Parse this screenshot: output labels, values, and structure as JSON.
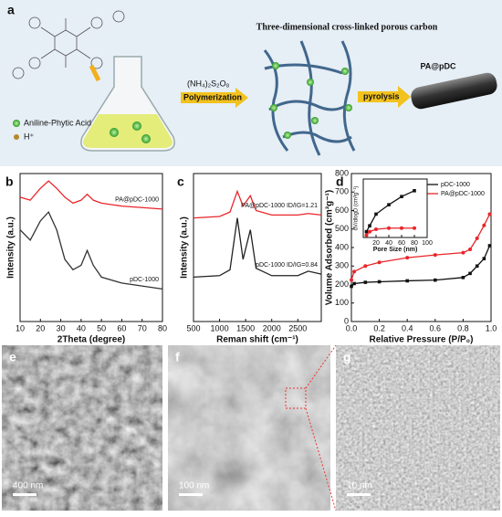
{
  "figure": {
    "panel_a": {
      "label": "a",
      "legend_pa": "Aniline-Phytic Acid",
      "legend_h": "H⁺",
      "reagent": "(NH₄)₂S₂O₈",
      "step1": "Polymerization",
      "network": "Three-dimensional cross-linked porous carbon",
      "step2": "pyrolysis",
      "product": "PA@pDC"
    },
    "micrographs": [
      {
        "label": "e",
        "scale": "400 nm"
      },
      {
        "label": "f",
        "scale": "100 nm"
      },
      {
        "label": "g",
        "scale": "10 nm"
      }
    ]
  },
  "chart_data": [
    {
      "type": "line",
      "panel": "b",
      "ylabel": "Intensity (a.u.)",
      "xlabel": "2Theta (degree)",
      "xlim": [
        10,
        80
      ],
      "xticks": [
        10,
        20,
        30,
        40,
        50,
        60,
        70,
        80
      ],
      "ylim": [
        0,
        100
      ],
      "x": [
        10,
        15,
        20,
        24,
        28,
        32,
        36,
        40,
        43,
        46,
        50,
        60,
        70,
        80
      ],
      "series": [
        {
          "name": "PA@pDC-1000",
          "color": "#e8262a",
          "values": [
            84,
            82,
            90,
            95,
            90,
            84,
            80,
            82,
            86,
            82,
            80,
            78,
            77,
            76
          ]
        },
        {
          "name": "pDC-1000",
          "color": "#333333",
          "values": [
            62,
            55,
            68,
            74,
            62,
            42,
            35,
            38,
            48,
            38,
            30,
            26,
            24,
            22
          ]
        }
      ]
    },
    {
      "type": "line",
      "panel": "c",
      "ylabel": "Intensity (a.u.)",
      "xlabel": "Reman shift (cm⁻¹)",
      "xlim": [
        500,
        2950
      ],
      "xticks": [
        500,
        1000,
        1500,
        2000,
        2500
      ],
      "ylim": [
        0,
        100
      ],
      "x": [
        500,
        1000,
        1200,
        1340,
        1450,
        1590,
        1700,
        2000,
        2500,
        2700,
        2950
      ],
      "series": [
        {
          "name": "PA@pDC-1000 ID/IG=1.21",
          "color": "#e8262a",
          "values": [
            70,
            71,
            74,
            88,
            78,
            85,
            75,
            72,
            72,
            73,
            72
          ]
        },
        {
          "name": "pDC-1000 ID/IG=0.84",
          "color": "#222222",
          "values": [
            30,
            31,
            35,
            70,
            42,
            62,
            36,
            31,
            31,
            34,
            32
          ]
        }
      ]
    },
    {
      "type": "line",
      "panel": "d",
      "ylabel": "Volume Adsorbed (cm³g⁻¹)",
      "xlabel": "Relative Pressure (P/P₀)",
      "legend": "upper right",
      "markers": true,
      "xlim": [
        0,
        1
      ],
      "xticks": [
        {
          "value": 0,
          "label": "0.0"
        },
        0.2,
        0.4,
        0.6,
        0.8,
        {
          "value": 1,
          "label": "1.0"
        }
      ],
      "ylim": [
        0,
        800
      ],
      "yticks": [
        0,
        100,
        200,
        300,
        400,
        500,
        600,
        700,
        800
      ],
      "x": [
        0,
        0.02,
        0.1,
        0.2,
        0.4,
        0.6,
        0.8,
        0.85,
        0.9,
        0.95,
        0.99
      ],
      "series": [
        {
          "name": "pDC-1000",
          "color": "#111111",
          "values": [
            190,
            205,
            212,
            215,
            220,
            224,
            238,
            260,
            300,
            340,
            410
          ]
        },
        {
          "name": "PA@pDC-1000",
          "color": "#e8262a",
          "values": [
            225,
            270,
            300,
            320,
            345,
            360,
            372,
            390,
            450,
            520,
            580
          ]
        }
      ]
    },
    {
      "type": "line",
      "ylabel": "dV/dlogD (cm³g⁻¹)",
      "xlabel": "Pore Size (nm)",
      "markers": true,
      "xlim": [
        0,
        100
      ],
      "xticks": [
        20,
        40,
        60,
        80,
        100
      ],
      "ylim": [
        0,
        0.5
      ],
      "x": [
        5,
        10,
        20,
        40,
        60,
        80
      ],
      "series": [
        {
          "name": "pDC-1000",
          "color": "#111111",
          "values": [
            0.05,
            0.1,
            0.2,
            0.28,
            0.35,
            0.4
          ]
        },
        {
          "name": "PA@pDC-1000",
          "color": "#e8262a",
          "values": [
            0.02,
            0.05,
            0.07,
            0.08,
            0.08,
            0.08
          ]
        }
      ]
    }
  ]
}
